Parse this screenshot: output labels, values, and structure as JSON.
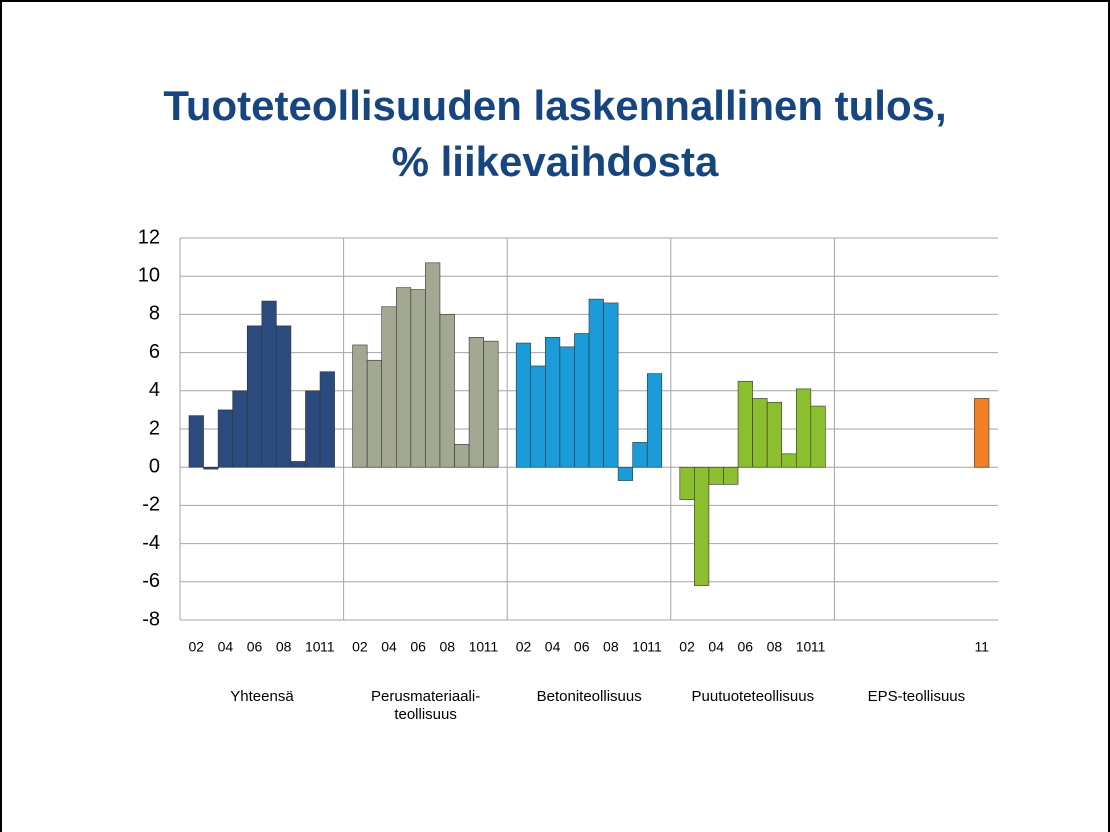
{
  "chart_data": {
    "type": "bar",
    "title": "Tuoteteollisuuden laskennallinen tulos,\n% liikevaihdosta",
    "ylim": [
      -8,
      12
    ],
    "yticks": [
      -8,
      -6,
      -4,
      -2,
      0,
      2,
      4,
      6,
      8,
      10,
      12
    ],
    "grid": true,
    "series": [
      {
        "name": "Yhteensä",
        "color": "#2b4a7d",
        "categories": [
          "02",
          null,
          "04",
          null,
          "06",
          null,
          "08",
          null,
          "10",
          "11"
        ],
        "values": [
          2.7,
          -0.1,
          3.0,
          4.0,
          7.4,
          8.7,
          7.4,
          0.3,
          4.0,
          5.0
        ]
      },
      {
        "name": "Perusmateriaali-\nteollisuus",
        "color": "#a3a892",
        "categories": [
          "02",
          null,
          "04",
          null,
          "06",
          null,
          "08",
          null,
          "10",
          "11"
        ],
        "values": [
          6.4,
          5.6,
          8.4,
          9.4,
          9.3,
          10.7,
          8.0,
          1.2,
          6.8,
          6.6
        ]
      },
      {
        "name": "Betoniteollisuus",
        "color": "#1b9bd7",
        "categories": [
          "02",
          null,
          "04",
          null,
          "06",
          null,
          "08",
          null,
          "10",
          "11"
        ],
        "values": [
          6.5,
          5.3,
          6.8,
          6.3,
          7.0,
          8.8,
          8.6,
          -0.7,
          1.3,
          4.9
        ]
      },
      {
        "name": "Puutuoteteollisuus",
        "color": "#8cbf30",
        "categories": [
          "02",
          null,
          "04",
          null,
          "06",
          null,
          "08",
          null,
          "10",
          "11"
        ],
        "values": [
          -1.7,
          -6.2,
          -0.9,
          -0.9,
          4.5,
          3.6,
          3.4,
          0.7,
          4.1,
          3.2
        ]
      },
      {
        "name": "EPS-teollisuus",
        "color": "#f07f26",
        "categories": [
          null,
          null,
          null,
          null,
          null,
          null,
          null,
          null,
          null,
          "11"
        ],
        "values": [
          null,
          null,
          null,
          null,
          null,
          null,
          null,
          null,
          null,
          3.6
        ]
      }
    ]
  }
}
